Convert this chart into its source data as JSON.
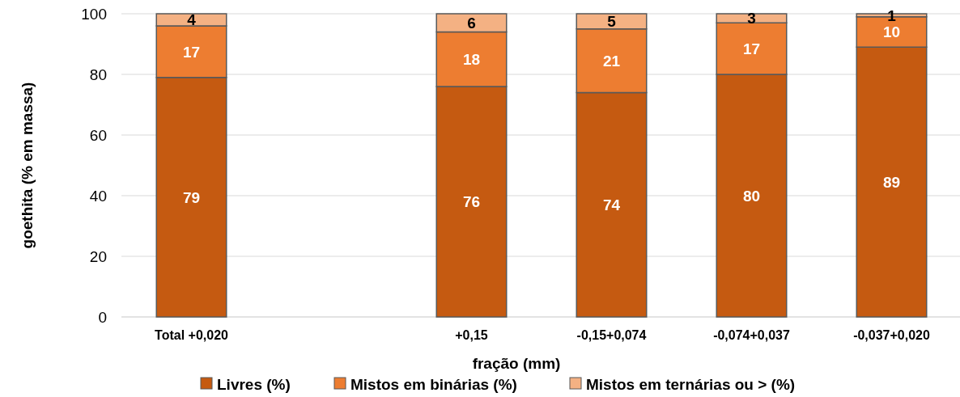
{
  "chart_data": {
    "type": "bar",
    "stacked": true,
    "xlabel": "fração (mm)",
    "ylabel": "goethita (% em massa)",
    "categories": [
      "Total +0,020",
      null,
      "+0,15",
      "-0,15+0,074",
      "-0,074+0,037",
      "-0,037+0,020"
    ],
    "series": [
      {
        "name": "Livres (%)",
        "color": "#c55a11",
        "values": [
          79,
          null,
          76,
          74,
          80,
          89
        ]
      },
      {
        "name": "Mistos em binárias (%)",
        "color": "#ed7d31",
        "values": [
          17,
          null,
          18,
          21,
          17,
          10
        ]
      },
      {
        "name": "Mistos em ternárias ou > (%)",
        "color": "#f4b183",
        "values": [
          4,
          null,
          6,
          5,
          3,
          1
        ]
      }
    ],
    "ylim": [
      0,
      100
    ],
    "yticks": [
      0,
      20,
      40,
      60,
      80,
      100
    ],
    "grid": "y",
    "legend": "bottom",
    "data_labels": true
  }
}
